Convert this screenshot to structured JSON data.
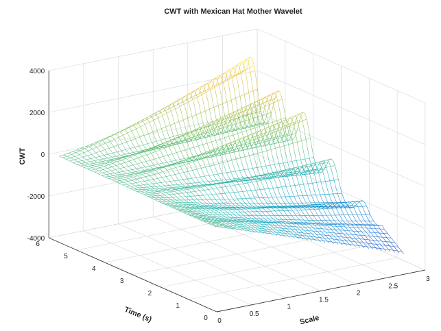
{
  "chart_data": {
    "type": "surface3d",
    "title": "CWT with Mexican Hat Mother Wavelet",
    "xlabel": "Scale",
    "ylabel": "Time (s)",
    "zlabel": "CWT",
    "xlim": [
      0,
      3
    ],
    "ylim": [
      0,
      6
    ],
    "zlim": [
      -4000,
      4000
    ],
    "x_ticks": [
      "0",
      "0.5",
      "1",
      "1.5",
      "2",
      "2.5",
      "3"
    ],
    "y_ticks": [
      "0",
      "1",
      "2",
      "3",
      "4",
      "5",
      "6"
    ],
    "z_ticks": [
      "-4000",
      "-2000",
      "0",
      "2000",
      "4000"
    ],
    "grid": true,
    "colormap": "parula",
    "ridges": [
      {
        "time": 5.6,
        "peak_cwt": 3500
      },
      {
        "time": 4.6,
        "peak_cwt": 2600
      },
      {
        "time": 3.7,
        "peak_cwt": 2600
      },
      {
        "time": 2.7,
        "peak_cwt": 1700
      },
      {
        "time": 1.6,
        "peak_cwt": 1000
      },
      {
        "time": 0.6,
        "peak_cwt": 300
      }
    ],
    "trough_cwt_at_max_scale": -3600
  }
}
